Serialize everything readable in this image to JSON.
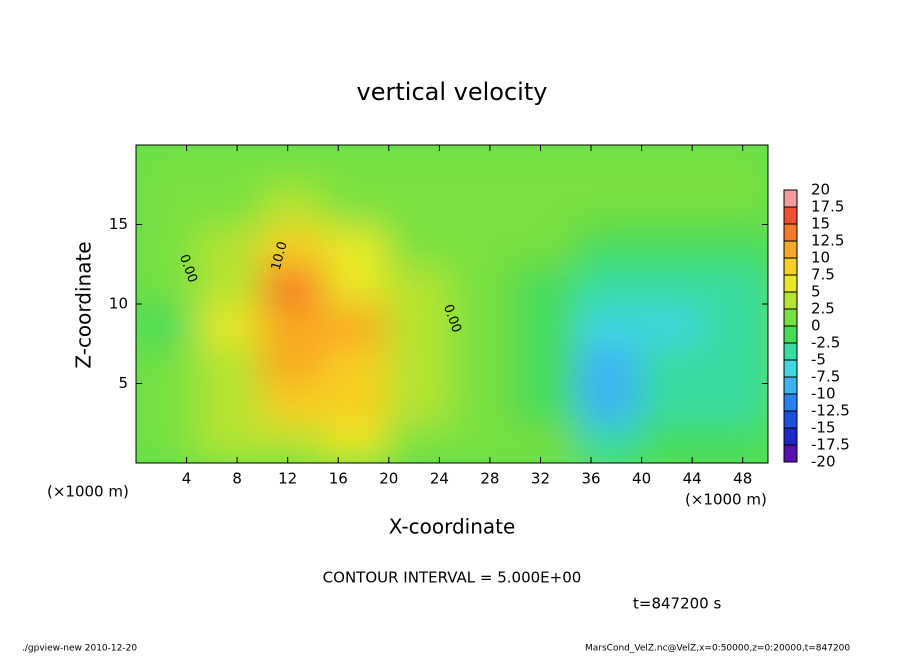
{
  "chart_data": {
    "type": "heatmap",
    "title": "vertical velocity",
    "x_label": "X-coordinate",
    "y_label": "Z-coordinate",
    "x_unit": "(×1000 m)",
    "y_unit": "(×1000 m)",
    "xlim": [
      0,
      50
    ],
    "ylim": [
      0,
      20
    ],
    "xticks": [
      4,
      8,
      12,
      16,
      20,
      24,
      28,
      32,
      36,
      40,
      44,
      48
    ],
    "yticks": [
      5,
      10,
      15
    ],
    "x": [
      2.5,
      7.5,
      12.5,
      17.5,
      22.5,
      27.5,
      32.5,
      37.5,
      42.5,
      47.5
    ],
    "y": [
      1.25,
      3.75,
      6.25,
      8.75,
      11.25,
      13.75,
      16.25,
      18.75
    ],
    "values": [
      [
        0.5,
        1,
        0.5,
        -1,
        0.5,
        0.5,
        0.5,
        0.5
      ],
      [
        4,
        3,
        4,
        5,
        4,
        3,
        1,
        0.5
      ],
      [
        3,
        9,
        11,
        12,
        14,
        9,
        3,
        1
      ],
      [
        6,
        9,
        9,
        11,
        7,
        5,
        2,
        0.5
      ],
      [
        2,
        4,
        4,
        3,
        3,
        2,
        1,
        0.5
      ],
      [
        1,
        1,
        0.5,
        0.5,
        0.5,
        0.5,
        0.5,
        0.5
      ],
      [
        0,
        -0.5,
        -1,
        -1,
        -0.5,
        0,
        0.5,
        0.5
      ],
      [
        -3,
        -8,
        -9,
        -6,
        -3,
        -1,
        0,
        0.5
      ],
      [
        -1,
        -4,
        -5,
        -6,
        -4,
        -2,
        0,
        0.5
      ],
      [
        -1,
        -3,
        -5,
        -5,
        -3,
        -1,
        0,
        0.5
      ]
    ],
    "levels": [
      20,
      17.5,
      15,
      12.5,
      10,
      7.5,
      5,
      2.5,
      0,
      -2.5,
      -5,
      -7.5,
      -10,
      -12.5,
      -15,
      -17.5,
      -20
    ],
    "level_colors": [
      "#f39a9a",
      "#f05030",
      "#f57a28",
      "#f8a824",
      "#f8d020",
      "#e8e828",
      "#b4e430",
      "#78e040",
      "#46dc5a",
      "#38dca0",
      "#40d8e0",
      "#3cb4f4",
      "#2a82f0",
      "#1e50e0",
      "#1a28c8",
      "#5a10b0"
    ],
    "annotations": [
      "0.00",
      "0.00",
      "10.0"
    ],
    "contour_interval": "CONTOUR INTERVAL = 5.000E+00",
    "time": "t=847200 s",
    "footer_left": "./gpview-new  2010-12-20",
    "footer_right": "MarsCond_VelZ.nc@VelZ,x=0:50000,z=0:20000,t=847200"
  }
}
